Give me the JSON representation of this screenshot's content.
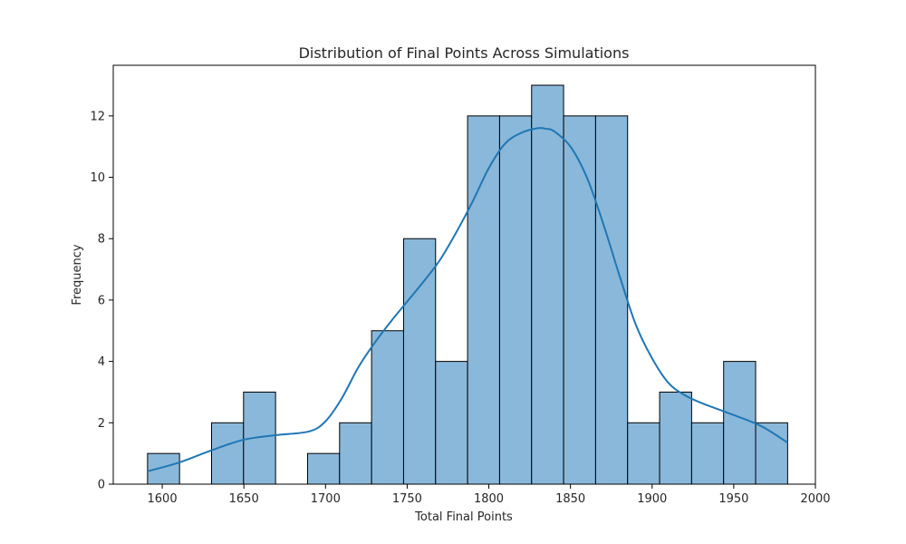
{
  "chart_data": {
    "type": "bar",
    "title": "Distribution of Final Points Across Simulations",
    "xlabel": "Total Final Points",
    "ylabel": "Frequency",
    "xlim": [
      1570,
      2000
    ],
    "ylim": [
      0,
      13.65
    ],
    "x_ticks": [
      "1600",
      "1650",
      "1700",
      "1750",
      "1800",
      "1850",
      "1900",
      "1950",
      "2000"
    ],
    "y_ticks": [
      "0",
      "2",
      "4",
      "6",
      "8",
      "10",
      "12"
    ],
    "bins": [
      {
        "start": 1591.0,
        "end": 1610.6,
        "count": 1
      },
      {
        "start": 1610.6,
        "end": 1630.2,
        "count": 0
      },
      {
        "start": 1630.2,
        "end": 1649.8,
        "count": 2
      },
      {
        "start": 1649.8,
        "end": 1669.4,
        "count": 3
      },
      {
        "start": 1669.4,
        "end": 1689.0,
        "count": 0
      },
      {
        "start": 1689.0,
        "end": 1708.6,
        "count": 1
      },
      {
        "start": 1708.6,
        "end": 1728.2,
        "count": 2
      },
      {
        "start": 1728.2,
        "end": 1747.8,
        "count": 5
      },
      {
        "start": 1747.8,
        "end": 1767.4,
        "count": 8
      },
      {
        "start": 1767.4,
        "end": 1787.0,
        "count": 4
      },
      {
        "start": 1787.0,
        "end": 1806.6,
        "count": 12
      },
      {
        "start": 1806.6,
        "end": 1826.2,
        "count": 12
      },
      {
        "start": 1826.2,
        "end": 1845.8,
        "count": 13
      },
      {
        "start": 1845.8,
        "end": 1865.4,
        "count": 12
      },
      {
        "start": 1865.4,
        "end": 1885.0,
        "count": 12
      },
      {
        "start": 1885.0,
        "end": 1904.6,
        "count": 2
      },
      {
        "start": 1904.6,
        "end": 1924.2,
        "count": 3
      },
      {
        "start": 1924.2,
        "end": 1943.8,
        "count": 2
      },
      {
        "start": 1943.8,
        "end": 1963.4,
        "count": 4
      },
      {
        "start": 1963.4,
        "end": 1983.0,
        "count": 2
      }
    ],
    "kde": {
      "x": [
        1591,
        1610,
        1630,
        1650,
        1670,
        1690,
        1700,
        1710,
        1720,
        1730,
        1740,
        1750,
        1760,
        1770,
        1780,
        1790,
        1800,
        1810,
        1820,
        1830,
        1835,
        1840,
        1850,
        1860,
        1870,
        1880,
        1890,
        1900,
        1910,
        1920,
        1930,
        1940,
        1950,
        1960,
        1970,
        1983
      ],
      "y": [
        0.42,
        0.7,
        1.1,
        1.45,
        1.6,
        1.72,
        2.05,
        2.8,
        3.8,
        4.6,
        5.3,
        5.95,
        6.6,
        7.3,
        8.2,
        9.2,
        10.3,
        11.1,
        11.45,
        11.6,
        11.58,
        11.5,
        11.0,
        10.0,
        8.5,
        6.8,
        5.2,
        4.1,
        3.3,
        2.9,
        2.65,
        2.45,
        2.25,
        2.05,
        1.8,
        1.35
      ]
    },
    "bar_color": "#8ab8da",
    "bar_edge_color": "#000000",
    "kde_color": "#1f77b4",
    "grid": false,
    "legend": "none"
  }
}
